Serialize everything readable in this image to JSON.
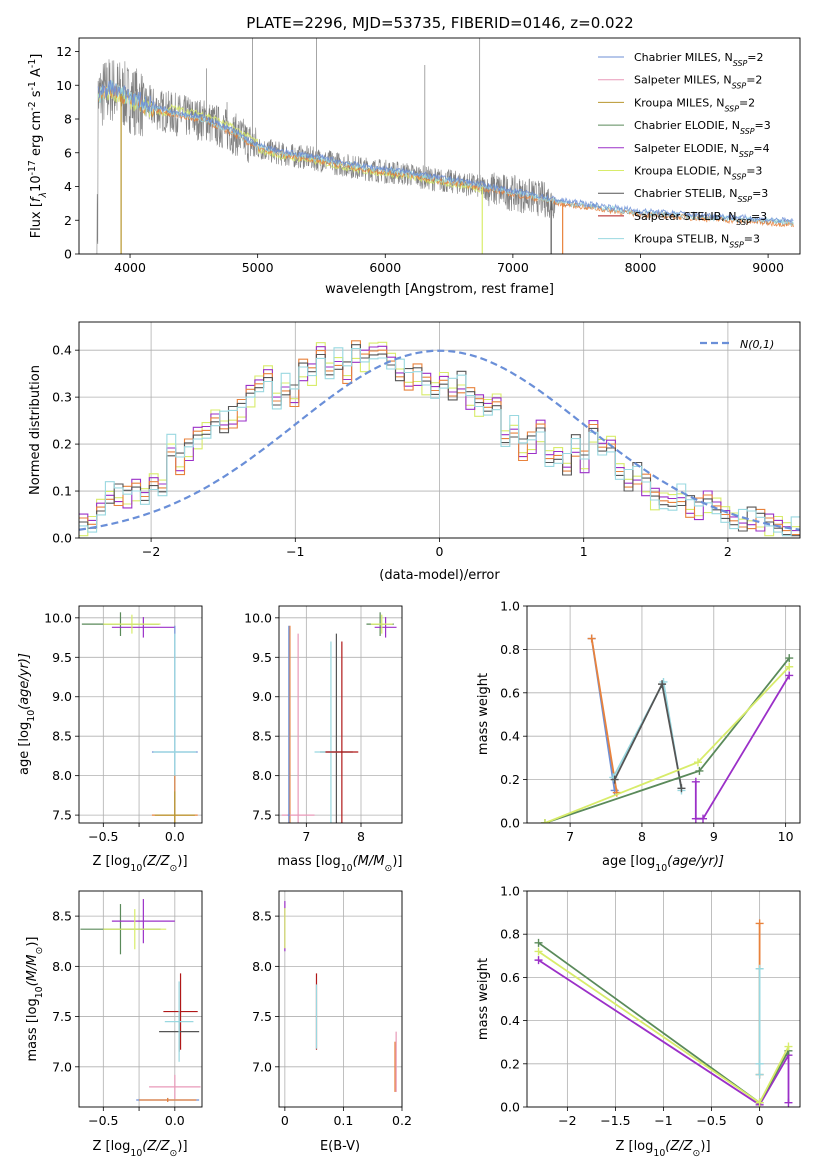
{
  "figure": {
    "title": "PLATE=2296, MJD=53735, FIBERID=0146, z=0.022",
    "colors": {
      "Chabrier MILES": "#6e8fd6",
      "Salpeter MILES": "#e899b8",
      "Kroupa MILES": "#b8962e",
      "Chabrier ELODIE": "#5a8a5a",
      "Salpeter ELODIE": "#9b30c8",
      "Kroupa ELODIE": "#d8ec6a",
      "Chabrier STELIB": "#555555",
      "Salpeter STELIB": "#b01818",
      "Kroupa STELIB": "#99d8e0",
      "data": "#808080",
      "model_orange": "#e8823c"
    }
  },
  "chart_data": [
    {
      "id": "spectrum",
      "type": "line",
      "xlabel": "wavelength [Angstrom, rest frame]",
      "ylabel_parts": [
        "Flux [",
        "f",
        "λ",
        "10",
        "-17",
        " erg cm",
        "-2",
        " s",
        "-1",
        " A",
        "-1",
        "]"
      ],
      "xlim": [
        3600,
        9250
      ],
      "ylim": [
        0,
        12.8
      ],
      "xticks": [
        4000,
        5000,
        6000,
        7000,
        8000,
        9000
      ],
      "yticks": [
        0,
        2,
        4,
        6,
        8,
        10,
        12
      ],
      "continuum": [
        [
          3750,
          9.3
        ],
        [
          3850,
          9.8
        ],
        [
          4000,
          9.2
        ],
        [
          4200,
          8.6
        ],
        [
          4400,
          8.2
        ],
        [
          4600,
          7.9
        ],
        [
          4800,
          7.2
        ],
        [
          5000,
          6.3
        ],
        [
          5200,
          5.9
        ],
        [
          5400,
          5.7
        ],
        [
          5600,
          5.4
        ],
        [
          5800,
          5.1
        ],
        [
          6000,
          4.9
        ],
        [
          6200,
          4.7
        ],
        [
          6400,
          4.4
        ],
        [
          6600,
          4.2
        ],
        [
          6800,
          3.9
        ],
        [
          7000,
          3.6
        ],
        [
          7200,
          3.3
        ],
        [
          7400,
          3.0
        ],
        [
          7600,
          2.8
        ],
        [
          7800,
          2.6
        ],
        [
          8000,
          2.4
        ],
        [
          8200,
          2.3
        ],
        [
          8400,
          2.2
        ],
        [
          8600,
          2.1
        ],
        [
          8800,
          2.0
        ],
        [
          9000,
          1.9
        ],
        [
          9200,
          1.8
        ]
      ],
      "legend": [
        {
          "name": "Chabrier MILES",
          "base": "Chabrier MILES, N",
          "sub": "SSP",
          "tail": "=2"
        },
        {
          "name": "Salpeter MILES",
          "base": "Salpeter MILES, N",
          "sub": "SSP",
          "tail": "=2"
        },
        {
          "name": "Kroupa MILES",
          "base": "Kroupa MILES, N",
          "sub": "SSP",
          "tail": "=2"
        },
        {
          "name": "Chabrier ELODIE",
          "base": "Chabrier ELODIE, N",
          "sub": "SSP",
          "tail": "=3"
        },
        {
          "name": "Salpeter ELODIE",
          "base": "Salpeter ELODIE, N",
          "sub": "SSP",
          "tail": "=4"
        },
        {
          "name": "Kroupa ELODIE",
          "base": "Kroupa ELODIE, N",
          "sub": "SSP",
          "tail": "=3"
        },
        {
          "name": "Chabrier STELIB",
          "base": "Chabrier STELIB, N",
          "sub": "SSP",
          "tail": "=3"
        },
        {
          "name": "Salpeter STELIB",
          "base": "Salpeter STELIB, N",
          "sub": "SSP",
          "tail": "=3"
        },
        {
          "name": "Kroupa STELIB",
          "base": "Kroupa STELIB, N",
          "sub": "SSP",
          "tail": "=3"
        }
      ]
    },
    {
      "id": "residuals",
      "type": "line",
      "xlabel": "(data-model)/error",
      "ylabel": "Normed distribution",
      "xlim": [
        -2.5,
        2.5
      ],
      "ylim": [
        0,
        0.46
      ],
      "xticks": [
        -2,
        -1,
        0,
        1,
        2
      ],
      "yticks": [
        0.0,
        0.1,
        0.2,
        0.3,
        0.4
      ],
      "legend": "N(0,1)",
      "hist_bin_width": 0.1,
      "hist_values": [
        0.03,
        0.025,
        0.07,
        0.095,
        0.09,
        0.085,
        0.1,
        0.08,
        0.12,
        0.115,
        0.2,
        0.16,
        0.19,
        0.215,
        0.225,
        0.26,
        0.245,
        0.255,
        0.27,
        0.3,
        0.32,
        0.35,
        0.3,
        0.33,
        0.305,
        0.36,
        0.35,
        0.395,
        0.36,
        0.38,
        0.35,
        0.395,
        0.375,
        0.39,
        0.4,
        0.385,
        0.36,
        0.34,
        0.35,
        0.33,
        0.31,
        0.34,
        0.315,
        0.33,
        0.295,
        0.28,
        0.27,
        0.29,
        0.22,
        0.24,
        0.19,
        0.205,
        0.23,
        0.165,
        0.18,
        0.155,
        0.195,
        0.16,
        0.225,
        0.185,
        0.2,
        0.15,
        0.125,
        0.14,
        0.115,
        0.085,
        0.075,
        0.08,
        0.09,
        0.065,
        0.06,
        0.075,
        0.06,
        0.05,
        0.045,
        0.04,
        0.045,
        0.04,
        0.03,
        0.025,
        0.02,
        0.02
      ]
    },
    {
      "id": "age-vs-Z",
      "type": "scatter",
      "xlabel_parts": [
        "Z [log",
        "10",
        "(Z/Z",
        "⊙",
        ")]"
      ],
      "ylabel_parts": [
        "age  [log",
        "10",
        "(age/yr)]"
      ],
      "xlim": [
        -0.67,
        0.19
      ],
      "ylim": [
        7.4,
        10.15
      ],
      "xticks": [
        -0.5,
        -0.25,
        0.0
      ],
      "xticklabels": [
        "−0.5",
        "",
        "0.0"
      ],
      "yticks": [
        7.5,
        8.0,
        8.5,
        9.0,
        9.5,
        10.0
      ],
      "points": [
        {
          "x": -0.38,
          "y": 9.92,
          "xerr": 0.27,
          "yerr": 0.15,
          "c": "Chabrier ELODIE"
        },
        {
          "x": -0.22,
          "y": 9.88,
          "xerr": 0.22,
          "yerr": 0.13,
          "c": "Salpeter ELODIE"
        },
        {
          "x": -0.3,
          "y": 9.92,
          "xerr": 0.2,
          "yerr": 0.12,
          "c": "Kroupa ELODIE"
        },
        {
          "x": 0.0,
          "y": 8.3,
          "xerr": 0.16,
          "yerr": 1.6,
          "c": "Chabrier MILES"
        },
        {
          "x": 0.0,
          "y": 8.3,
          "xerr": 0.15,
          "yerr": 1.5,
          "c": "Kroupa STELIB"
        },
        {
          "x": 0.0,
          "y": 7.5,
          "xerr": 0.16,
          "yerr": 0.5,
          "c": "model_orange"
        },
        {
          "x": 0.0,
          "y": 7.5,
          "xerr": 0.14,
          "yerr": 0.3,
          "c": "Kroupa MILES"
        }
      ]
    },
    {
      "id": "age-vs-mass",
      "type": "scatter",
      "xlabel_parts": [
        "mass [log",
        "10",
        "(M/M",
        "⊙",
        ")]"
      ],
      "xlim": [
        6.5,
        8.75
      ],
      "ylim": [
        7.4,
        10.15
      ],
      "xticks": [
        7,
        8
      ],
      "yticks": [
        7.5,
        8.0,
        8.5,
        9.0,
        9.5,
        10.0
      ],
      "points": [
        {
          "x": 8.35,
          "y": 9.92,
          "xerr": 0.25,
          "yerr": 0.15,
          "c": "Chabrier ELODIE"
        },
        {
          "x": 8.45,
          "y": 9.88,
          "xerr": 0.2,
          "yerr": 0.13,
          "c": "Salpeter ELODIE"
        },
        {
          "x": 8.38,
          "y": 9.92,
          "xerr": 0.2,
          "yerr": 0.12,
          "c": "Kroupa ELODIE"
        },
        {
          "x": 7.55,
          "y": 8.3,
          "xerr": 0.3,
          "yerr": 1.5,
          "c": "Chabrier STELIB"
        },
        {
          "x": 7.45,
          "y": 8.3,
          "xerr": 0.3,
          "yerr": 1.4,
          "c": "Kroupa STELIB"
        },
        {
          "x": 7.65,
          "y": 8.3,
          "xerr": 0.3,
          "yerr": 1.4,
          "c": "Salpeter STELIB"
        },
        {
          "x": 6.7,
          "y": 7.5,
          "xerr": 0.02,
          "yerr": 2.4,
          "c": "model_orange"
        },
        {
          "x": 6.85,
          "y": 7.5,
          "xerr": 0.3,
          "yerr": 2.3,
          "c": "Salpeter MILES"
        },
        {
          "x": 6.68,
          "y": 7.5,
          "xerr": 0.02,
          "yerr": 2.4,
          "c": "Chabrier MILES"
        }
      ]
    },
    {
      "id": "weight-vs-age",
      "type": "line",
      "xlabel_parts": [
        "age  [log",
        "10",
        "(age/yr)]"
      ],
      "ylabel": "mass weight",
      "xlim": [
        6.4,
        10.2
      ],
      "ylim": [
        0,
        1.0
      ],
      "xticks": [
        7,
        8,
        9,
        10
      ],
      "yticks": [
        0.0,
        0.2,
        0.4,
        0.6,
        0.8,
        1.0
      ],
      "lines": [
        {
          "c": "Chabrier MILES",
          "pts": [
            [
              7.3,
              0.85
            ],
            [
              7.62,
              0.15
            ]
          ]
        },
        {
          "c": "model_orange",
          "pts": [
            [
              7.3,
              0.85
            ],
            [
              7.65,
              0.14
            ]
          ]
        },
        {
          "c": "Kroupa STELIB",
          "pts": [
            [
              7.6,
              0.21
            ],
            [
              8.3,
              0.65
            ],
            [
              8.55,
              0.15
            ]
          ]
        },
        {
          "c": "Chabrier STELIB",
          "pts": [
            [
              7.62,
              0.2
            ],
            [
              8.28,
              0.64
            ],
            [
              8.55,
              0.16
            ]
          ]
        },
        {
          "c": "Salpeter ELODIE",
          "pts": [
            [
              8.75,
              0.19
            ],
            [
              8.75,
              0.02
            ],
            [
              8.85,
              0.02
            ],
            [
              10.05,
              0.68
            ]
          ]
        },
        {
          "c": "Chabrier ELODIE",
          "pts": [
            [
              6.65,
              0.0
            ],
            [
              8.8,
              0.24
            ],
            [
              10.05,
              0.76
            ]
          ]
        },
        {
          "c": "Kroupa ELODIE",
          "pts": [
            [
              6.65,
              0.0
            ],
            [
              8.78,
              0.28
            ],
            [
              10.05,
              0.72
            ]
          ]
        }
      ]
    },
    {
      "id": "mass-vs-Z",
      "type": "scatter",
      "xlabel_parts": [
        "Z [log",
        "10",
        "(Z/Z",
        "⊙",
        ")]"
      ],
      "ylabel_parts": [
        "mass [log",
        "10",
        "(M/M",
        "⊙",
        ")]"
      ],
      "xlim": [
        -0.67,
        0.19
      ],
      "ylim": [
        6.6,
        8.75
      ],
      "xticks": [
        -0.5,
        -0.25,
        0.0
      ],
      "xticklabels": [
        "−0.5",
        "",
        "0.0"
      ],
      "yticks": [
        7.0,
        7.5,
        8.0,
        8.5
      ],
      "points": [
        {
          "x": -0.38,
          "y": 8.37,
          "xerr": 0.28,
          "yerr": 0.25,
          "c": "Chabrier ELODIE"
        },
        {
          "x": -0.22,
          "y": 8.45,
          "xerr": 0.22,
          "yerr": 0.22,
          "c": "Salpeter ELODIE"
        },
        {
          "x": -0.28,
          "y": 8.37,
          "xerr": 0.22,
          "yerr": 0.2,
          "c": "Kroupa ELODIE"
        },
        {
          "x": 0.04,
          "y": 7.55,
          "xerr": 0.12,
          "yerr": 0.38,
          "c": "Salpeter STELIB"
        },
        {
          "x": 0.03,
          "y": 7.35,
          "xerr": 0.14,
          "yerr": 0.2,
          "c": "Chabrier STELIB"
        },
        {
          "x": 0.03,
          "y": 7.45,
          "xerr": 0.1,
          "yerr": 0.4,
          "c": "Kroupa STELIB"
        },
        {
          "x": 0.0,
          "y": 6.8,
          "xerr": 0.18,
          "yerr": 0.12,
          "c": "Salpeter MILES"
        },
        {
          "x": -0.05,
          "y": 6.67,
          "xerr": 0.22,
          "yerr": 0.02,
          "c": "Chabrier MILES"
        },
        {
          "x": -0.05,
          "y": 6.67,
          "xerr": 0.2,
          "yerr": 0.02,
          "c": "model_orange"
        }
      ]
    },
    {
      "id": "mass-vs-EBV",
      "type": "scatter",
      "xlabel": "E(B-V)",
      "xlim": [
        -0.01,
        0.2
      ],
      "ylim": [
        6.6,
        8.75
      ],
      "xticks": [
        0.0,
        0.1,
        0.2
      ],
      "yticks": [
        7.0,
        7.5,
        8.0,
        8.5
      ],
      "points": [
        {
          "x": 0.0,
          "y": 8.4,
          "yerr": 0.25,
          "c": "Salpeter ELODIE"
        },
        {
          "x": 0.0,
          "y": 8.38,
          "yerr": 0.2,
          "c": "Kroupa ELODIE"
        },
        {
          "x": 0.054,
          "y": 7.55,
          "yerr": 0.38,
          "c": "Salpeter STELIB"
        },
        {
          "x": 0.054,
          "y": 7.5,
          "yerr": 0.32,
          "c": "Kroupa STELIB"
        },
        {
          "x": 0.188,
          "y": 7.0,
          "yerr": 0.25,
          "c": "model_orange"
        },
        {
          "x": 0.19,
          "y": 7.05,
          "yerr": 0.3,
          "c": "Salpeter MILES"
        }
      ]
    },
    {
      "id": "weight-vs-Z",
      "type": "line",
      "xlabel_parts": [
        "Z [log",
        "10",
        "(Z/Z",
        "⊙",
        ")]"
      ],
      "ylabel": "mass weight",
      "xlim": [
        -2.42,
        0.42
      ],
      "ylim": [
        0,
        1.0
      ],
      "xticks": [
        -2.0,
        -1.5,
        -1.0,
        -0.5,
        0.0
      ],
      "yticks": [
        0.0,
        0.2,
        0.4,
        0.6,
        0.8,
        1.0
      ],
      "lines": [
        {
          "c": "Salpeter ELODIE",
          "pts": [
            [
              -2.3,
              0.68
            ],
            [
              0.0,
              0.01
            ],
            [
              0.3,
              0.24
            ],
            [
              0.3,
              0.02
            ]
          ]
        },
        {
          "c": "Chabrier ELODIE",
          "pts": [
            [
              -2.3,
              0.76
            ],
            [
              0.0,
              0.02
            ],
            [
              0.3,
              0.26
            ]
          ]
        },
        {
          "c": "Kroupa ELODIE",
          "pts": [
            [
              -2.3,
              0.72
            ],
            [
              0.0,
              0.02
            ],
            [
              0.3,
              0.28
            ]
          ]
        },
        {
          "c": "model_orange",
          "pts": [
            [
              0.0,
              0.85
            ],
            [
              0.0,
              0.15
            ]
          ]
        },
        {
          "c": "Kroupa STELIB",
          "pts": [
            [
              0.0,
              0.64
            ],
            [
              0.0,
              0.2
            ],
            [
              0.0,
              0.15
            ]
          ]
        }
      ]
    }
  ]
}
